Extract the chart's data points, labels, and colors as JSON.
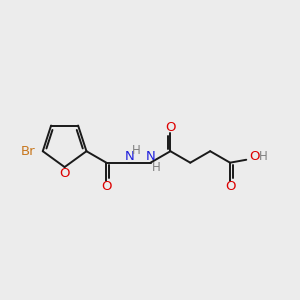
{
  "background_color": "#ececec",
  "bond_color": "#1a1a1a",
  "bond_width": 1.4,
  "br_color": "#c87820",
  "o_color": "#dd0000",
  "n_color": "#2020dd",
  "h_color": "#808080",
  "font_size": 9.5,
  "figsize": [
    3.0,
    3.0
  ],
  "dpi": 100,
  "xlim": [
    0,
    10
  ],
  "ylim": [
    0,
    10
  ]
}
